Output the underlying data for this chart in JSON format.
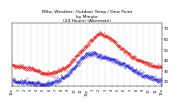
{
  "title": "Milw. Weather: Outdoor Temp / Dew Point\nby Minute\n(24 Hours) (Alternate)",
  "title_fontsize": 3.2,
  "bg_color": "#ffffff",
  "temp_color": "#dd0000",
  "dew_color": "#0000cc",
  "grid_color": "#888888",
  "ylim": [
    15,
    75
  ],
  "xlim": [
    0,
    1440
  ],
  "ylabel_fontsize": 2.8,
  "xlabel_fontsize": 2.5,
  "yticks": [
    20,
    30,
    40,
    50,
    60,
    70
  ],
  "xtick_labels": [
    "12a",
    "1",
    "2",
    "3",
    "4",
    "5",
    "6",
    "7",
    "8",
    "9",
    "10",
    "11",
    "12p",
    "1",
    "2",
    "3",
    "4",
    "5",
    "6",
    "7",
    "8",
    "9",
    "10",
    "11",
    "12a"
  ],
  "marker_size": 0.4,
  "temp_keypoints_hours": [
    0,
    2,
    4,
    5.5,
    7,
    9,
    11,
    13,
    14,
    15,
    17,
    19,
    21,
    23,
    24
  ],
  "temp_keypoints_vals": [
    35,
    33,
    30,
    27,
    29,
    35,
    48,
    60,
    65,
    63,
    54,
    44,
    38,
    34,
    33
  ],
  "dew_keypoints_hours": [
    0,
    2,
    4,
    5,
    6,
    8,
    10,
    11,
    12,
    13,
    14,
    15,
    17,
    19,
    21,
    23,
    24
  ],
  "dew_keypoints_vals": [
    20,
    19,
    18,
    17,
    18,
    23,
    33,
    40,
    45,
    46,
    44,
    42,
    38,
    32,
    26,
    22,
    20
  ]
}
